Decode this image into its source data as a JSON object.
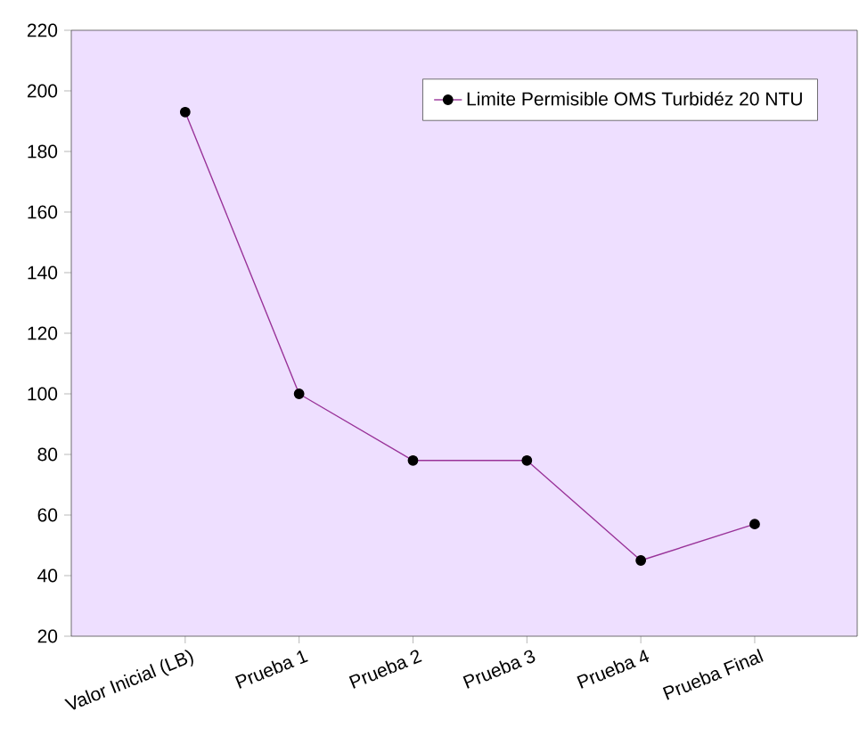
{
  "chart_data": {
    "type": "line",
    "categories": [
      "Valor Inicial (LB)",
      "Prueba 1",
      "Prueba 2",
      "Prueba 3",
      "Prueba 4",
      "Prueba Final"
    ],
    "series": [
      {
        "name": "Limite Permisible OMS Turbidéz 20 NTU",
        "color": "#993399",
        "values": [
          193,
          100,
          78,
          78,
          45,
          57
        ]
      }
    ],
    "ylim": [
      20,
      220
    ],
    "yticks": [
      20,
      40,
      60,
      80,
      100,
      120,
      140,
      160,
      180,
      200,
      220
    ],
    "legend": "top right",
    "marker": "circle",
    "line_style": "solid"
  }
}
